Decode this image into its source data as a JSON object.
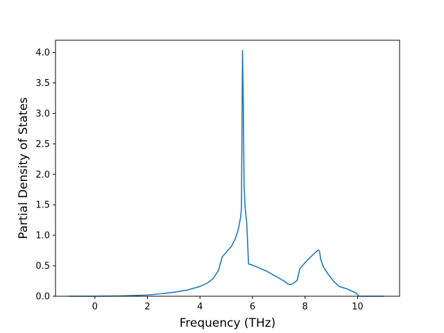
{
  "chart_data": {
    "type": "line",
    "title": "",
    "xlabel": "Frequency (THz)",
    "ylabel": "Partial Density of States",
    "xlim": [
      -1.5,
      11.6
    ],
    "ylim": [
      0,
      4.2
    ],
    "x_ticks": [
      0,
      2,
      4,
      6,
      8,
      10
    ],
    "y_ticks": [
      0.0,
      0.5,
      1.0,
      1.5,
      2.0,
      2.5,
      3.0,
      3.5,
      4.0
    ],
    "x_tick_labels": [
      "0",
      "2",
      "4",
      "6",
      "8",
      "10"
    ],
    "y_tick_labels": [
      "0.0",
      "0.5",
      "1.0",
      "1.5",
      "2.0",
      "2.5",
      "3.0",
      "3.5",
      "4.0"
    ],
    "grid": false,
    "legend": "none",
    "series": [
      {
        "color": "#1f77b4",
        "x": [
          -1.0,
          0.0,
          1.0,
          2.0,
          2.5,
          3.0,
          3.5,
          4.0,
          4.3,
          4.5,
          4.7,
          4.85,
          5.0,
          5.2,
          5.35,
          5.45,
          5.55,
          5.58,
          5.62,
          5.65,
          5.68,
          5.72,
          5.78,
          5.85,
          6.0,
          6.5,
          7.0,
          7.2,
          7.35,
          7.45,
          7.55,
          7.7,
          7.8,
          8.0,
          8.2,
          8.4,
          8.5,
          8.55,
          8.6,
          8.7,
          8.9,
          9.1,
          9.3,
          9.6,
          9.8,
          9.95,
          10.05,
          11.0
        ],
        "y": [
          0.0,
          0.0,
          0.005,
          0.02,
          0.04,
          0.065,
          0.1,
          0.16,
          0.22,
          0.29,
          0.42,
          0.65,
          0.72,
          0.82,
          0.95,
          1.08,
          1.3,
          1.45,
          4.03,
          3.2,
          1.8,
          1.45,
          1.2,
          0.53,
          0.51,
          0.42,
          0.3,
          0.25,
          0.2,
          0.19,
          0.21,
          0.26,
          0.45,
          0.55,
          0.64,
          0.72,
          0.76,
          0.74,
          0.6,
          0.48,
          0.35,
          0.24,
          0.16,
          0.12,
          0.08,
          0.05,
          0.0,
          0.0
        ]
      }
    ]
  }
}
